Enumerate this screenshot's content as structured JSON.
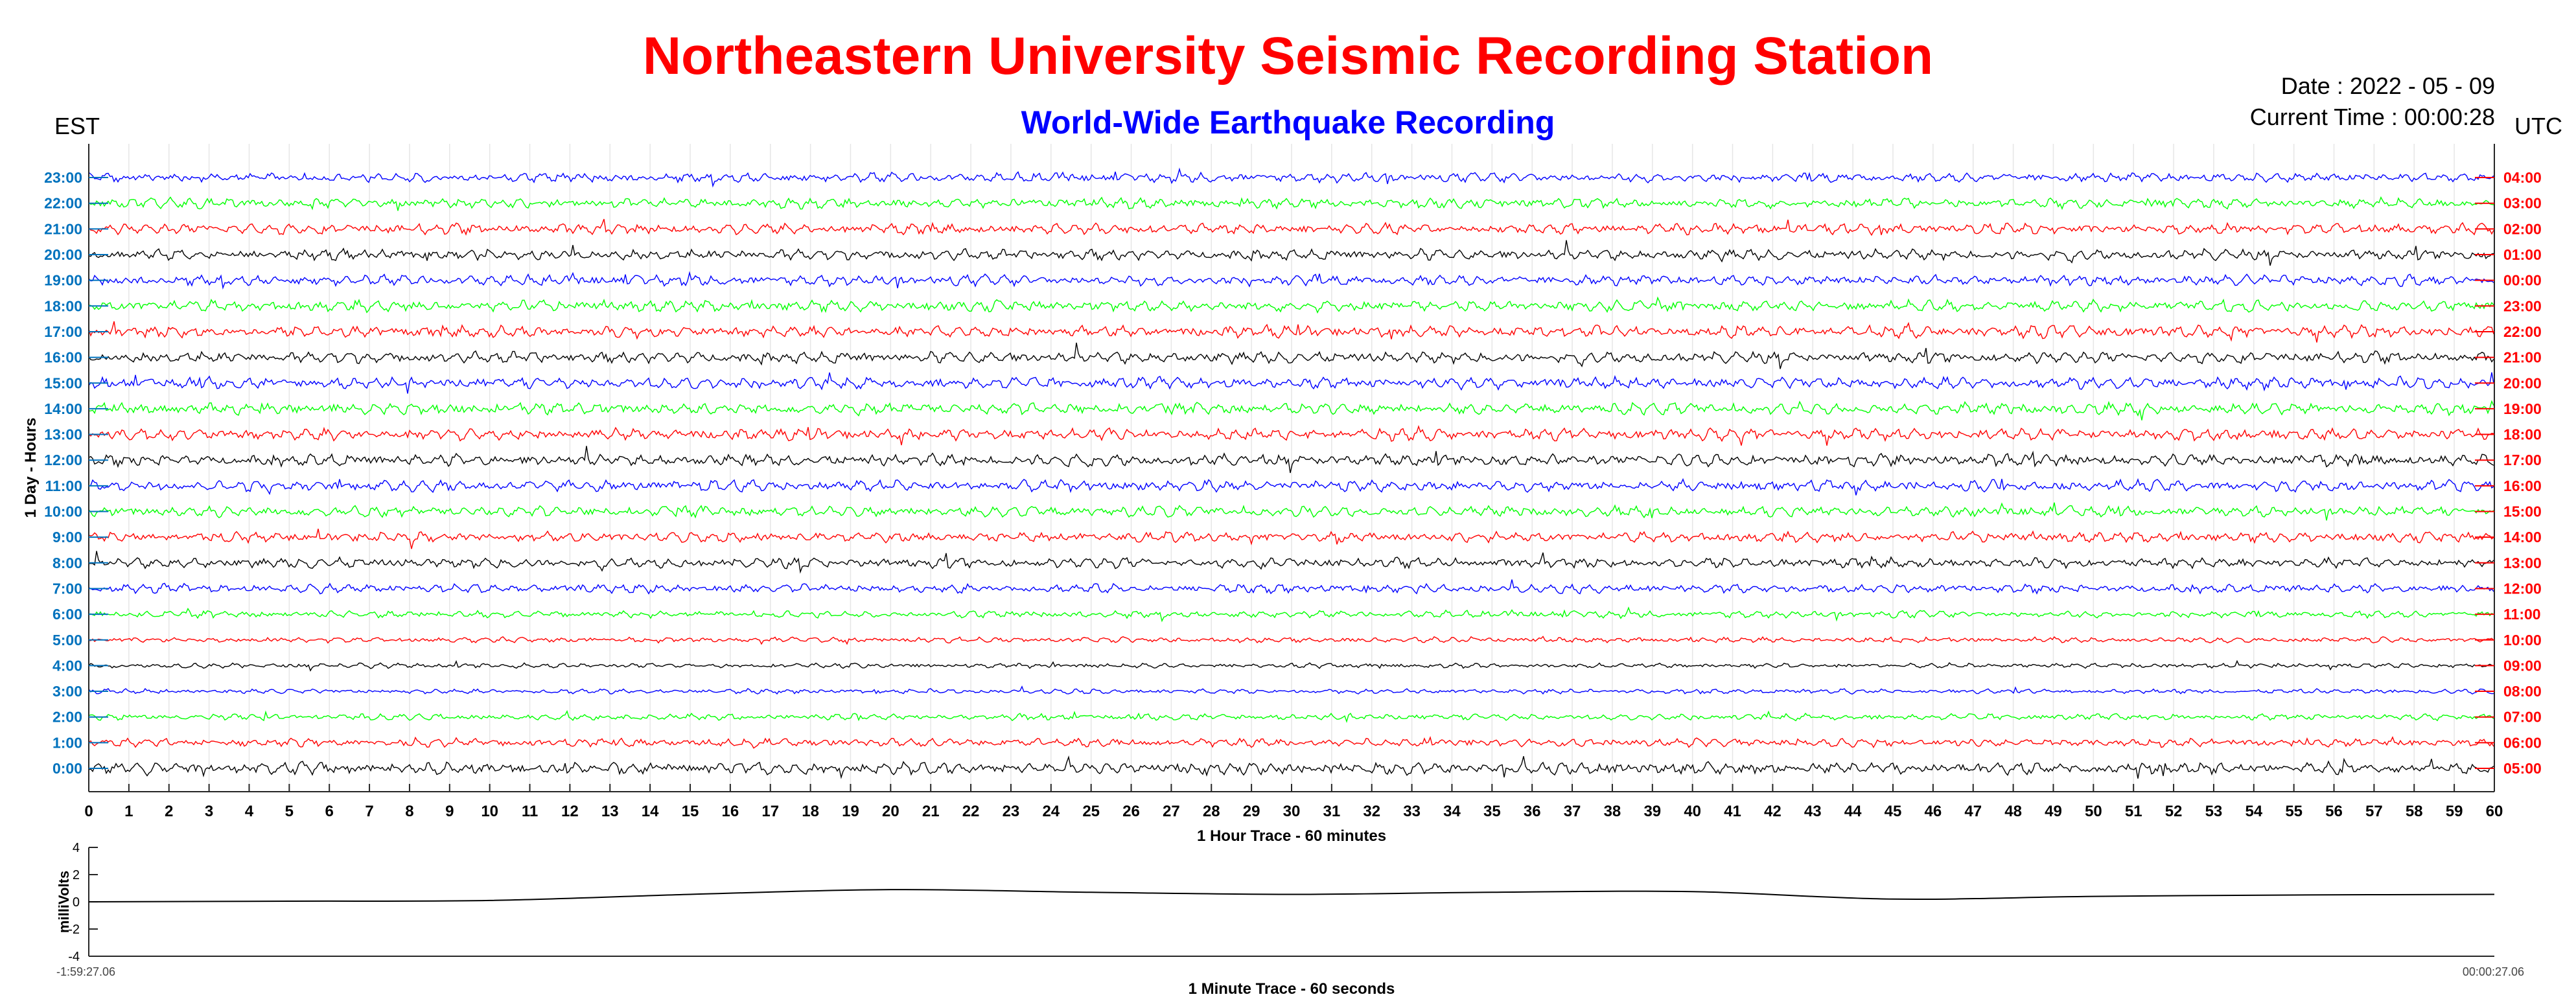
{
  "header": {
    "title": "Northeastern University Seismic Recording Station",
    "subtitle": "World-Wide Earthquake Recording",
    "left_zone": "EST",
    "right_zone": "UTC",
    "date_text": "Date : 2022 - 05 - 09",
    "current_time_text": "Current Time : 00:00:28"
  },
  "colors": {
    "title": "#ff0000",
    "subtitle": "#0000ff",
    "left_ticks": "#0072bd",
    "right_ticks": "#ff0000",
    "traces": [
      "#000000",
      "#ff0000",
      "#00ff00",
      "#0000ff"
    ]
  },
  "chart_data": [
    {
      "type": "line",
      "xlabel": "1 Hour Trace - 60 minutes",
      "ylabel": "1 Day - Hours",
      "xlim": [
        0,
        60
      ],
      "x_ticks": [
        0,
        1,
        2,
        3,
        4,
        5,
        6,
        7,
        8,
        9,
        10,
        11,
        12,
        13,
        14,
        15,
        16,
        17,
        18,
        19,
        20,
        21,
        22,
        23,
        24,
        25,
        26,
        27,
        28,
        29,
        30,
        31,
        32,
        33,
        34,
        35,
        36,
        37,
        38,
        39,
        40,
        41,
        42,
        43,
        44,
        45,
        46,
        47,
        48,
        49,
        50,
        51,
        52,
        53,
        54,
        55,
        56,
        57,
        58,
        59,
        60
      ],
      "y_ticks_left": [
        "0:00",
        "1:00",
        "2:00",
        "3:00",
        "4:00",
        "5:00",
        "6:00",
        "7:00",
        "8:00",
        "9:00",
        "10:00",
        "11:00",
        "12:00",
        "13:00",
        "14:00",
        "15:00",
        "16:00",
        "17:00",
        "18:00",
        "19:00",
        "20:00",
        "21:00",
        "22:00",
        "23:00"
      ],
      "y_ticks_right": [
        "05:00",
        "06:00",
        "07:00",
        "08:00",
        "09:00",
        "10:00",
        "11:00",
        "12:00",
        "13:00",
        "14:00",
        "15:00",
        "16:00",
        "17:00",
        "18:00",
        "19:00",
        "20:00",
        "21:00",
        "22:00",
        "23:00",
        "00:00",
        "01:00",
        "02:00",
        "03:00",
        "04:00"
      ],
      "grid": true,
      "series_colors_cycle_from_bottom": [
        "#000000",
        "#ff0000",
        "#00ff00",
        "#0000ff"
      ],
      "relative_amplitude_by_hour": [
        1.0,
        0.7,
        0.55,
        0.4,
        0.4,
        0.45,
        0.6,
        0.75,
        0.85,
        0.85,
        0.9,
        0.95,
        1.0,
        1.0,
        1.0,
        1.0,
        0.95,
        1.0,
        0.95,
        0.9,
        0.9,
        0.9,
        0.85,
        0.8
      ]
    },
    {
      "type": "line",
      "xlabel": "1 Minute Trace  - 60 seconds",
      "ylabel": "milliVolts",
      "ylim": [
        -4,
        4
      ],
      "y_ticks": [
        -4,
        -2,
        0,
        2,
        4
      ],
      "x_start_label": "-1:59:27.06",
      "x_end_label": "00:00:27.06",
      "color": "#000000",
      "x": [
        0,
        5,
        10,
        15,
        20,
        25,
        30,
        35,
        40,
        45,
        50,
        55,
        60
      ],
      "y": [
        0.0,
        0.05,
        0.1,
        0.55,
        0.9,
        0.7,
        0.55,
        0.7,
        0.75,
        0.2,
        0.4,
        0.5,
        0.55
      ]
    }
  ]
}
